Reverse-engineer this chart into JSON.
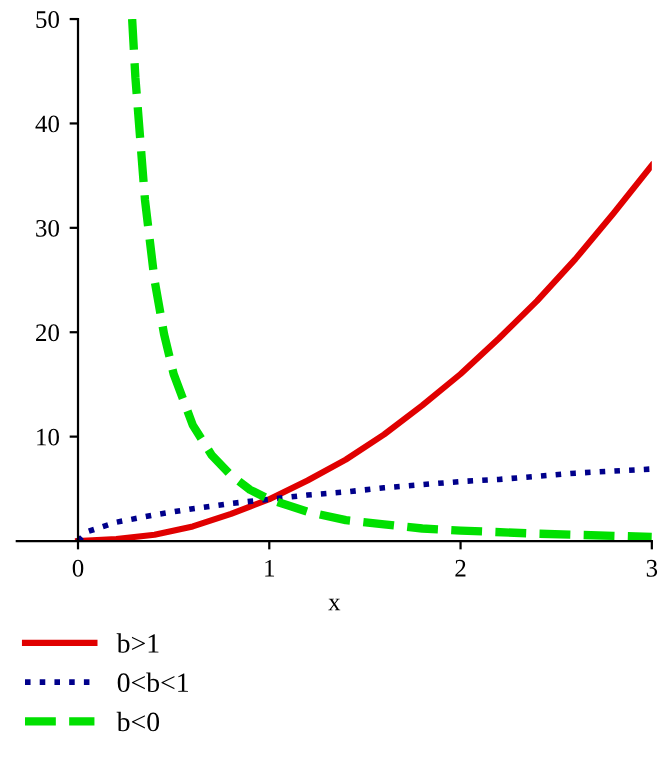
{
  "chart_data": {
    "type": "line",
    "xlabel": "x",
    "xlim": [
      -0.32,
      3
    ],
    "ylim": [
      0,
      50
    ],
    "xticks": [
      0,
      1,
      2,
      3
    ],
    "yticks": [
      10,
      20,
      30,
      40,
      50
    ],
    "grid": false,
    "legend": "bottom left",
    "series": [
      {
        "name": "b>1",
        "color": "#e00000",
        "line_style": "solid",
        "x": [
          0,
          0.2,
          0.4,
          0.6,
          0.8,
          1,
          1.2,
          1.4,
          1.6,
          1.8,
          2,
          2.2,
          2.4,
          2.6,
          2.8,
          3
        ],
        "values": [
          0,
          0.2,
          0.6,
          1.4,
          2.6,
          4,
          5.8,
          7.8,
          10.2,
          13,
          16,
          19.4,
          23,
          27,
          31.4,
          36
        ]
      },
      {
        "name": "0<b<1",
        "color": "#00008b",
        "line_style": "dotted",
        "x": [
          0,
          0.05,
          0.2,
          0.4,
          0.6,
          0.8,
          1,
          1.2,
          1.4,
          1.6,
          1.8,
          2,
          2.2,
          2.4,
          2.6,
          2.8,
          3
        ],
        "values": [
          0,
          0.9,
          1.8,
          2.5,
          3.1,
          3.6,
          4,
          4.4,
          4.7,
          5.1,
          5.4,
          5.7,
          5.9,
          6.2,
          6.5,
          6.7,
          6.9
        ]
      },
      {
        "name": "b<0",
        "color": "#00e000",
        "line_style": "dashed",
        "x": [
          0.283,
          0.3,
          0.35,
          0.4,
          0.45,
          0.5,
          0.6,
          0.7,
          0.8,
          0.9,
          1,
          1.2,
          1.4,
          1.6,
          1.8,
          2,
          2.4,
          2.8,
          3
        ],
        "values": [
          50,
          44.4,
          32.7,
          25,
          19.8,
          16,
          11.1,
          8.2,
          6.3,
          4.9,
          4,
          2.8,
          2,
          1.6,
          1.2,
          1,
          0.7,
          0.5,
          0.4
        ]
      }
    ]
  }
}
